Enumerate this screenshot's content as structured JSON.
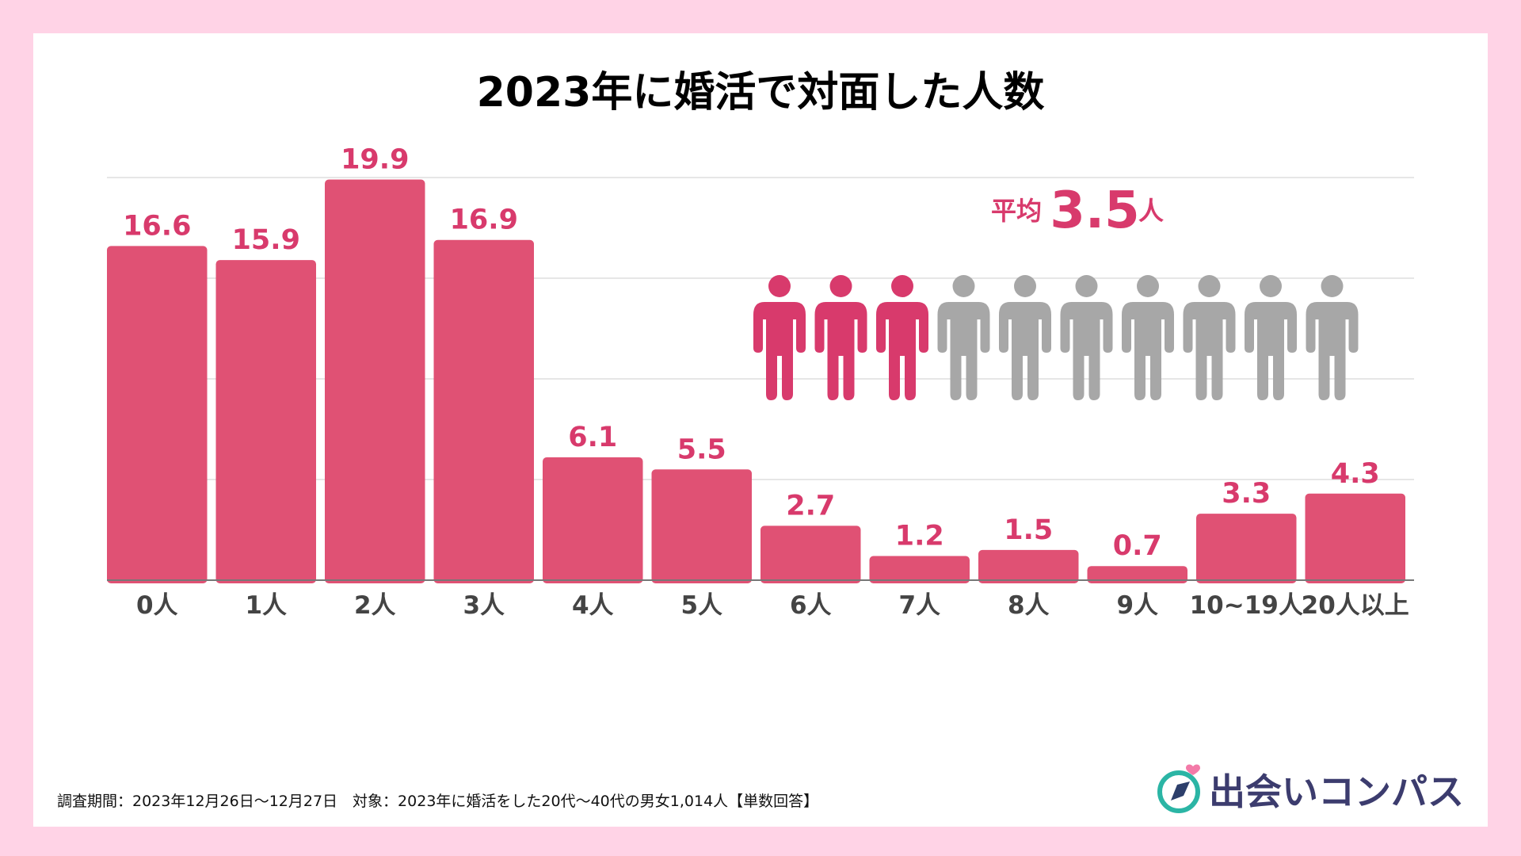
{
  "title": "2023年に婚活で対面した人数",
  "colors": {
    "bar": "#e05174",
    "value": "#d83a6c",
    "person_gray": "#a7a7a7",
    "grid": "#dddddd",
    "background": "#ffd3e6"
  },
  "average": {
    "prefix": "平均",
    "value": "3.5",
    "unit": "人",
    "icon_total": 10,
    "icon_name": "person-icon"
  },
  "footnote": "調査期間：2023年12月26日〜12月27日　対象：2023年に婚活をした20代〜40代の男女1,014人【単数回答】",
  "brand": {
    "name": "出会いコンパス",
    "logo_icon": "compass-logo-icon"
  },
  "chart_data": {
    "type": "bar",
    "title": "2023年に婚活で対面した人数",
    "categories": [
      "0人",
      "1人",
      "2人",
      "3人",
      "4人",
      "5人",
      "6人",
      "7人",
      "8人",
      "9人",
      "10~19人",
      "20人以上"
    ],
    "values": [
      16.6,
      15.9,
      19.9,
      16.9,
      6.1,
      5.5,
      2.7,
      1.2,
      1.5,
      0.7,
      3.3,
      4.3
    ],
    "ylim": [
      0,
      20
    ],
    "grid": true,
    "gridlines": [
      5,
      10,
      15,
      20
    ],
    "legend": "none"
  }
}
